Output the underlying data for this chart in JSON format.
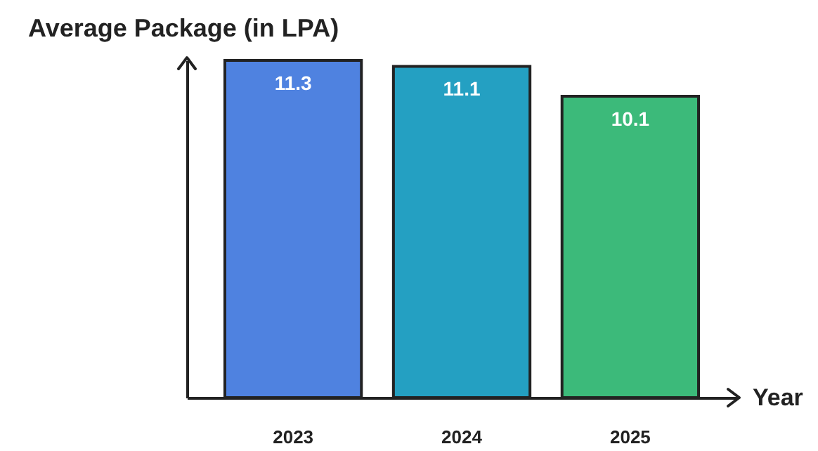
{
  "chart_data": {
    "type": "bar",
    "title": "Average Package (in LPA)",
    "xlabel": "Year",
    "categories": [
      "2023",
      "2024",
      "2025"
    ],
    "values": [
      11.3,
      11.1,
      10.1
    ],
    "colors": [
      "#4f82e0",
      "#24a0c2",
      "#3cba7a"
    ],
    "data_labels": true,
    "grid": false
  }
}
